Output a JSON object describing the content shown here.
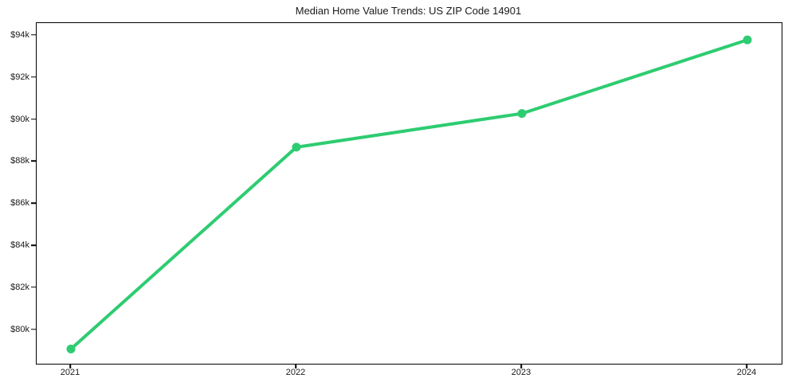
{
  "figure": {
    "background_color": "#ffffff",
    "axis_color": "#000000",
    "text_color": "#1a1a1a"
  },
  "chart_data": {
    "type": "line",
    "title": "Median Home Value Trends: US ZIP Code 14901",
    "categories": [
      "2021",
      "2022",
      "2023",
      "2024"
    ],
    "values": [
      79100,
      88700,
      90300,
      93800
    ],
    "y_tick_values": [
      80000,
      82000,
      84000,
      86000,
      88000,
      90000,
      92000,
      94000
    ],
    "y_tick_labels": [
      "$80k",
      "$82k",
      "$84k",
      "$86k",
      "$88k",
      "$90k",
      "$92k",
      "$94k"
    ],
    "ylim": [
      78400,
      94600
    ],
    "xlabel": "",
    "ylabel": "",
    "grid": false,
    "legend_position": "none",
    "line_color": "#2ecc71",
    "marker": "circle",
    "marker_color": "#2ecc71",
    "line_width": 4,
    "marker_radius": 5.5
  }
}
